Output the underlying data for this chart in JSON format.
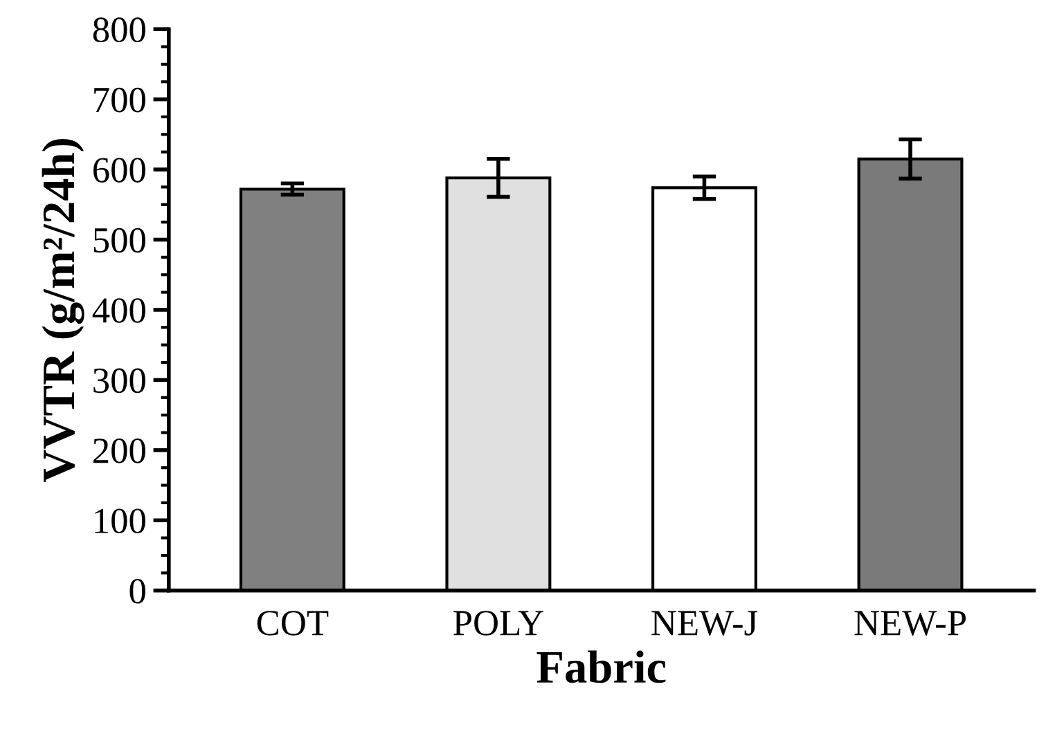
{
  "chart_data": {
    "type": "bar",
    "categories": [
      "COT",
      "POLY",
      "NEW-J",
      "NEW-P"
    ],
    "values": [
      572,
      588,
      574,
      615
    ],
    "errors": [
      8,
      27,
      16,
      28
    ],
    "colors": [
      "#808080",
      "#e0e0e0",
      "#ffffff",
      "#7a7a7a"
    ],
    "xlabel": "Fabric",
    "ylabel": "VVTR (g/m²/24h)",
    "ylim": [
      0,
      800
    ],
    "yticks": [
      0,
      {
        "value": 25,
        "label": null
      },
      {
        "value": 50,
        "label": null
      },
      {
        "value": 75,
        "label": null
      },
      100,
      {
        "value": 125,
        "label": null
      },
      {
        "value": 150,
        "label": null
      },
      {
        "value": 175,
        "label": null
      },
      200,
      {
        "value": 225,
        "label": null
      },
      {
        "value": 250,
        "label": null
      },
      {
        "value": 275,
        "label": null
      },
      300,
      {
        "value": 325,
        "label": null
      },
      {
        "value": 350,
        "label": null
      },
      {
        "value": 375,
        "label": null
      },
      400,
      {
        "value": 425,
        "label": null
      },
      {
        "value": 450,
        "label": null
      },
      {
        "value": 475,
        "label": null
      },
      500,
      {
        "value": 525,
        "label": null
      },
      {
        "value": 550,
        "label": null
      },
      {
        "value": 575,
        "label": null
      },
      600,
      {
        "value": 625,
        "label": null
      },
      {
        "value": 650,
        "label": null
      },
      {
        "value": 675,
        "label": null
      },
      700,
      {
        "value": 725,
        "label": null
      },
      {
        "value": 750,
        "label": null
      },
      {
        "value": 775,
        "label": null
      },
      800
    ],
    "grid": false
  }
}
